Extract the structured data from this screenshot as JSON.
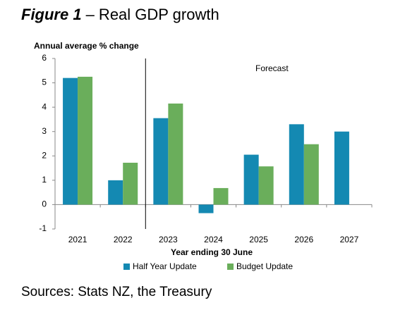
{
  "chart_data": {
    "type": "bar",
    "title_prefix": "Figure 1",
    "title": "– Real GDP growth",
    "y_label": "Annual average % change",
    "x_label": "Year ending 30 June",
    "annotation": "Forecast",
    "source": "Sources: Stats NZ, the Treasury",
    "categories": [
      "2021",
      "2022",
      "2023",
      "2024",
      "2025",
      "2026",
      "2027"
    ],
    "series": [
      {
        "name": "Half Year Update",
        "color": "#1489b2",
        "values": [
          5.2,
          1.0,
          3.55,
          -0.35,
          2.05,
          3.3,
          3.0
        ]
      },
      {
        "name": "Budget Update",
        "color": "#6aae5b",
        "values": [
          5.25,
          1.72,
          4.15,
          0.68,
          1.57,
          2.48,
          null
        ]
      }
    ],
    "ylim": [
      -1,
      6
    ],
    "yticks": [
      -1,
      0,
      1,
      2,
      3,
      4,
      5,
      6
    ],
    "grid": false,
    "legend": "bottom"
  }
}
